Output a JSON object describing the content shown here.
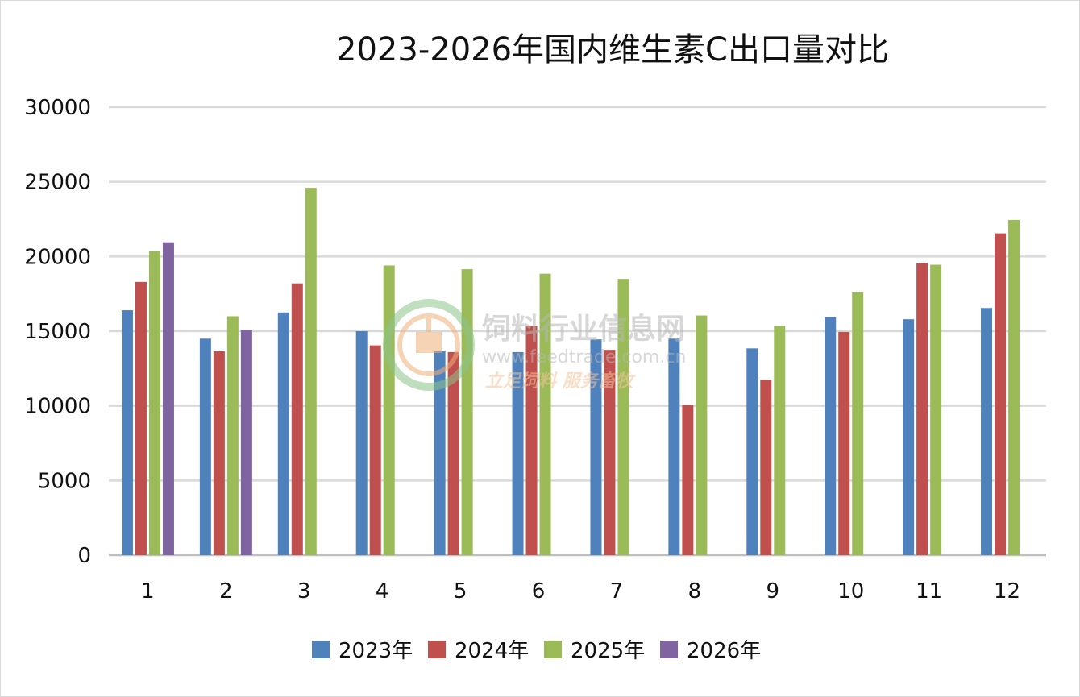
{
  "chart_data": {
    "type": "bar",
    "title": "2023-2026年国内维生素C出口量对比",
    "xlabel": "",
    "ylabel": "",
    "categories": [
      "1",
      "2",
      "3",
      "4",
      "5",
      "6",
      "7",
      "8",
      "9",
      "10",
      "11",
      "12"
    ],
    "ylim": [
      0,
      30000
    ],
    "yticks": [
      0,
      5000,
      10000,
      15000,
      20000,
      25000,
      30000
    ],
    "grid": true,
    "legend_position": "bottom",
    "series": [
      {
        "name": "2023年",
        "color": "#4F81BD",
        "values": [
          16400,
          14500,
          16250,
          15000,
          13700,
          13600,
          14450,
          14500,
          13850,
          15950,
          15800,
          16550
        ]
      },
      {
        "name": "2024年",
        "color": "#C0504D",
        "values": [
          18300,
          13650,
          18200,
          14050,
          13600,
          15350,
          13750,
          10050,
          11750,
          14950,
          19550,
          21550
        ]
      },
      {
        "name": "2025年",
        "color": "#9BBB59",
        "values": [
          20350,
          16000,
          24600,
          19400,
          19150,
          18850,
          18500,
          16050,
          15350,
          17600,
          19450,
          22450
        ]
      },
      {
        "name": "2026年",
        "color": "#8064A2",
        "values": [
          20950,
          15100,
          null,
          null,
          null,
          null,
          null,
          null,
          null,
          null,
          null,
          null
        ]
      }
    ]
  },
  "watermark": {
    "title": "饲料行业信息网",
    "url": "www.feedtrade.com.cn",
    "slogan": "立足饲料  服务畜牧"
  }
}
